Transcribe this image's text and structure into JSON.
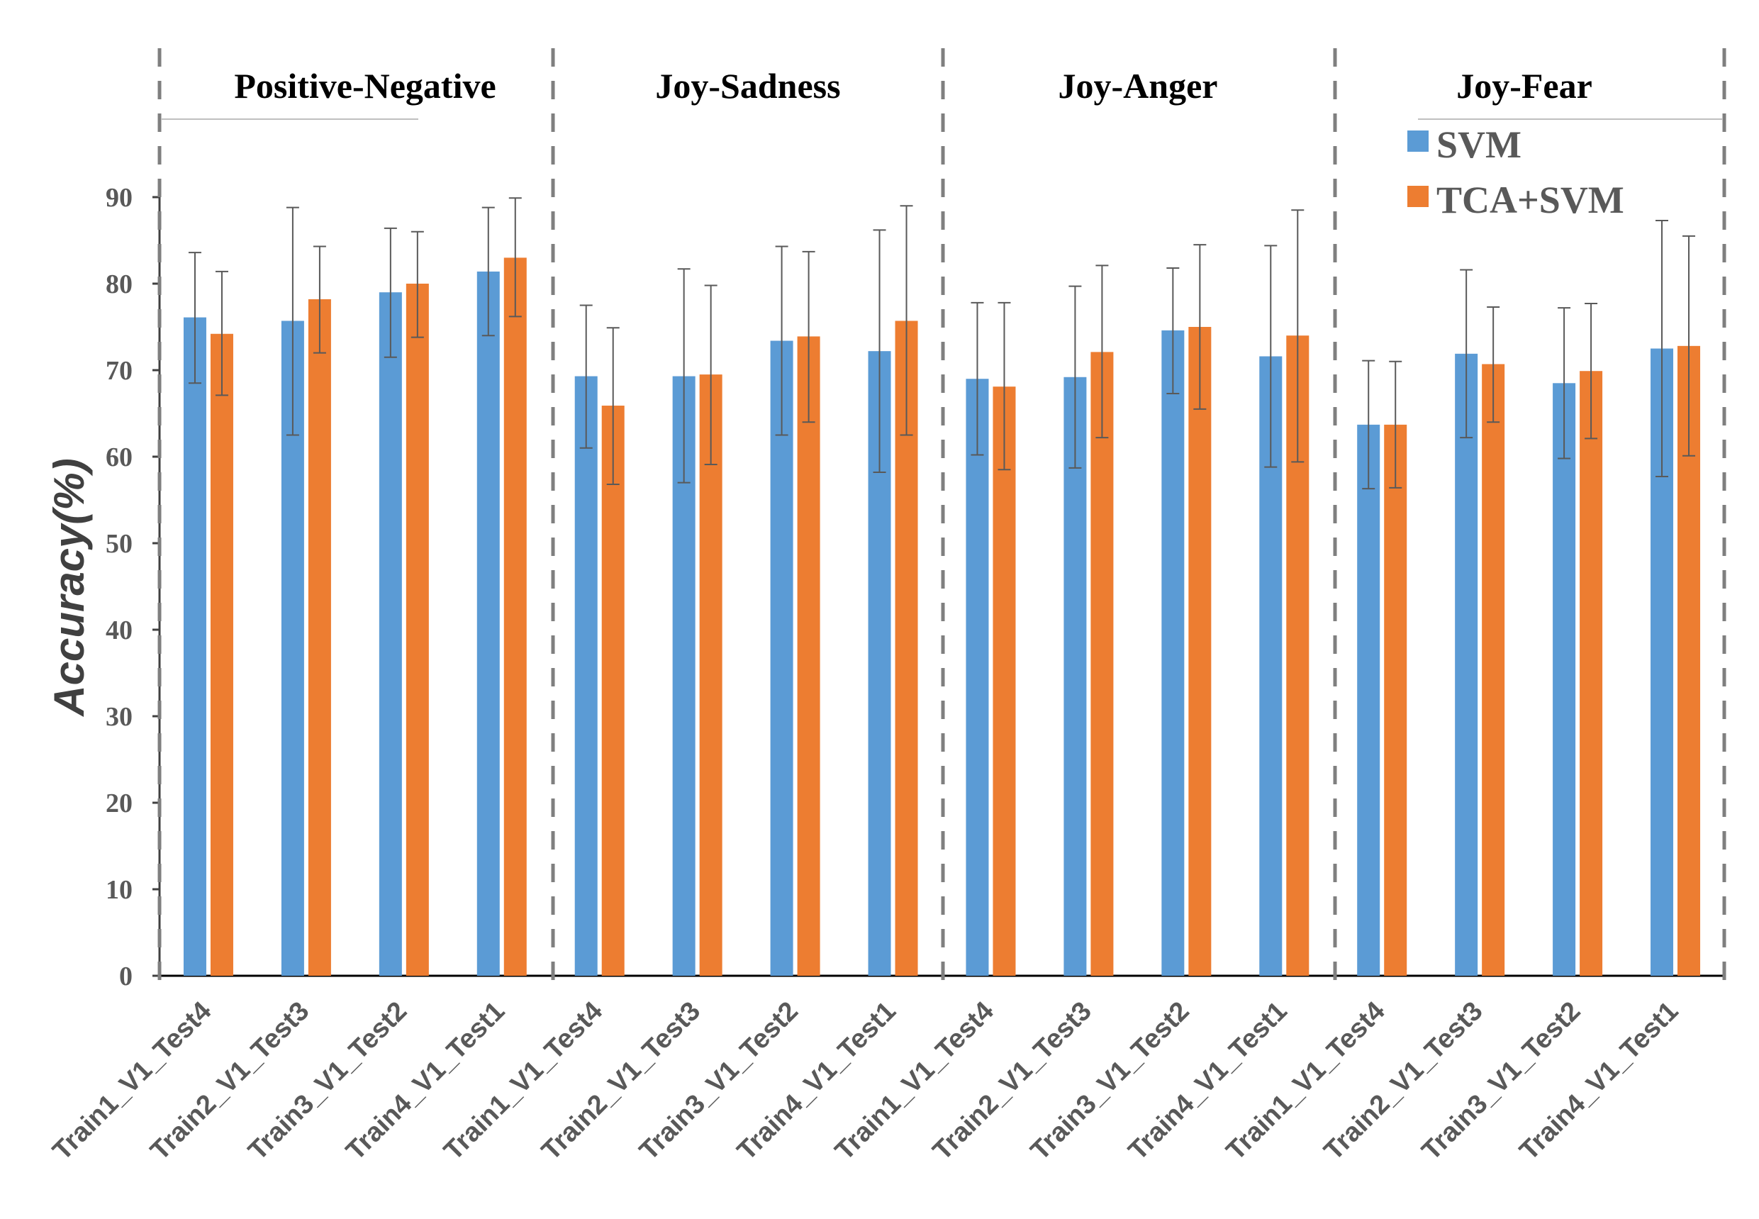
{
  "chart_data": {
    "type": "bar",
    "ylabel": "Accuracy(%)",
    "ylim": [
      0,
      90
    ],
    "yticks": [
      0,
      10,
      20,
      30,
      40,
      50,
      60,
      70,
      80,
      90
    ],
    "groups": [
      "Positive-Negative",
      "Joy-Sadness",
      "Joy-Anger",
      "Joy-Fear"
    ],
    "categories": [
      "Train1_V1_Test4",
      "Train2_V1_Test3",
      "Train3_V1_Test2",
      "Train4_V1_Test1",
      "Train1_V1_Test4",
      "Train2_V1_Test3",
      "Train3_V1_Test2",
      "Train4_V1_Test1",
      "Train1_V1_Test4",
      "Train2_V1_Test3",
      "Train3_V1_Test2",
      "Train4_V1_Test1",
      "Train1_V1_Test4",
      "Train2_V1_Test3",
      "Train3_V1_Test2",
      "Train4_V1_Test1"
    ],
    "series": [
      {
        "name": "SVM",
        "color": "#5b9bd5",
        "values": [
          76.1,
          75.7,
          79.0,
          81.4,
          69.3,
          69.3,
          73.4,
          72.2,
          69.0,
          69.2,
          74.6,
          71.6,
          63.7,
          71.9,
          68.5,
          72.5
        ],
        "err_low": [
          68.5,
          62.5,
          71.5,
          74.0,
          61.0,
          57.0,
          62.5,
          58.2,
          60.2,
          58.7,
          67.3,
          58.8,
          56.3,
          62.2,
          59.8,
          57.7
        ],
        "err_high": [
          83.6,
          88.8,
          86.4,
          88.8,
          77.5,
          81.7,
          84.3,
          86.2,
          77.8,
          79.7,
          81.8,
          84.4,
          71.1,
          81.6,
          77.2,
          87.3
        ]
      },
      {
        "name": "TCA+SVM",
        "color": "#ed7d31",
        "values": [
          74.2,
          78.2,
          80.0,
          83.0,
          65.9,
          69.5,
          73.9,
          75.7,
          68.1,
          72.1,
          75.0,
          74.0,
          63.7,
          70.7,
          69.9,
          72.8
        ],
        "err_low": [
          67.1,
          72.0,
          73.8,
          76.2,
          56.8,
          59.1,
          64.0,
          62.5,
          58.5,
          62.2,
          65.5,
          59.4,
          56.4,
          64.0,
          62.1,
          60.1
        ],
        "err_high": [
          81.4,
          84.3,
          86.0,
          89.9,
          74.9,
          79.8,
          83.7,
          89.0,
          77.8,
          82.1,
          84.5,
          88.5,
          71.0,
          77.3,
          77.7,
          85.5
        ]
      }
    ],
    "legend_position": "top-right"
  }
}
